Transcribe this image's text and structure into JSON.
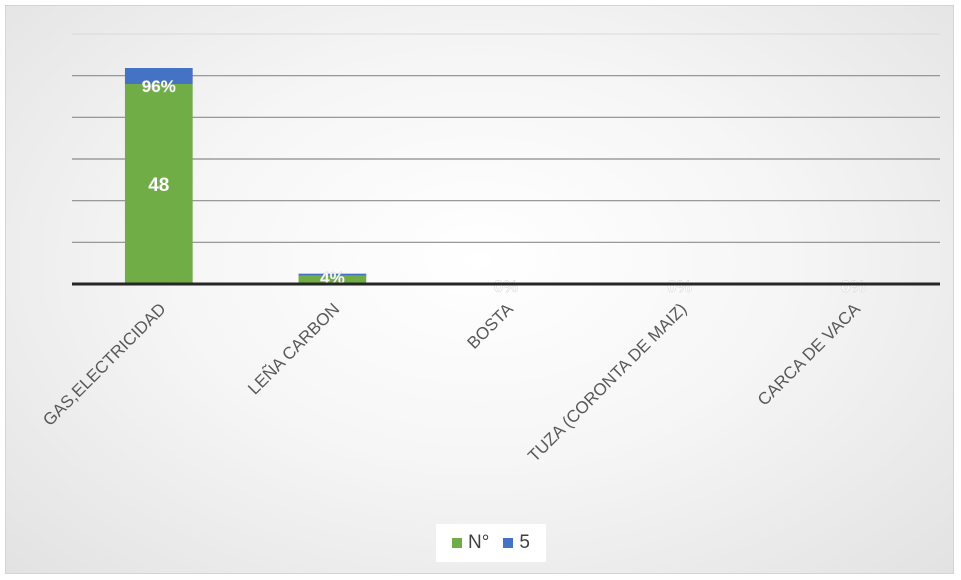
{
  "chart_data": {
    "type": "bar",
    "stacked": true,
    "categories": [
      "GAS,ELECTRICIDAD",
      "LEÑA CARBON",
      "BOSTA",
      "TUZA (CORONTA DE MAIZ)",
      "CARCA DE VACA"
    ],
    "series": [
      {
        "name": "N°",
        "values": [
          48,
          2,
          0,
          0,
          0
        ],
        "color": "#70ad47"
      },
      {
        "name": "5",
        "values": [
          0.96,
          0.04,
          0,
          0,
          0
        ],
        "color": "#4472c4"
      }
    ],
    "data_labels": {
      "count": [
        "48",
        "",
        "",
        "",
        ""
      ],
      "percent": [
        "96%",
        "4%",
        "0%",
        "0%",
        "0%"
      ]
    },
    "ylim": [
      0,
      60
    ],
    "gridlines": true,
    "legend_position": "bottom"
  },
  "legend": [
    {
      "label": "N°",
      "color": "#70ad47"
    },
    {
      "label": "5",
      "color": "#4472c4"
    }
  ]
}
